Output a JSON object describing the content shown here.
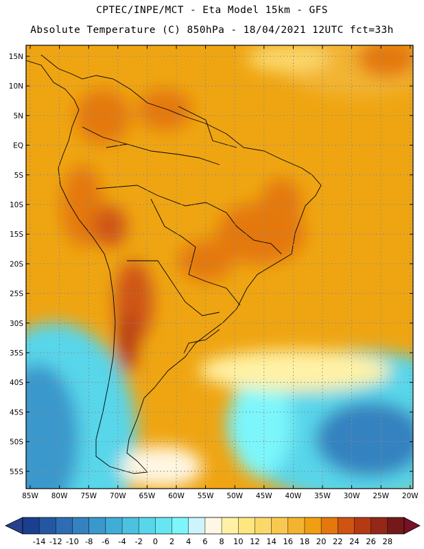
{
  "title_line1": "CPTEC/INPE/MCT -  Eta Model 15km - GFS",
  "title_line2": "Absolute Temperature (C) 850hPa - 18/04/2021 12UTC fct=33h",
  "lat_labels": [
    "15N",
    "10N",
    "5N",
    "EQ",
    "5S",
    "10S",
    "15S",
    "20S",
    "25S",
    "30S",
    "35S",
    "40S",
    "45S",
    "50S",
    "55S"
  ],
  "lon_labels": [
    "85W",
    "80W",
    "75W",
    "70W",
    "65W",
    "60W",
    "55W",
    "50W",
    "45W",
    "40W",
    "35W",
    "30W",
    "25W",
    "20W"
  ],
  "colorbar": {
    "levels": [
      "-14",
      "-12",
      "-10",
      "-8",
      "-6",
      "-4",
      "-2",
      "0",
      "2",
      "4",
      "6",
      "8",
      "10",
      "12",
      "14",
      "16",
      "18",
      "20",
      "22",
      "24",
      "26",
      "28"
    ],
    "colors": [
      "#1a3f8f",
      "#2457a3",
      "#2e6db3",
      "#3582c0",
      "#3b98cc",
      "#41add6",
      "#4cc2e0",
      "#58d6ea",
      "#66e6f2",
      "#7cf6fb",
      "#cdf3fb",
      "#fff7e3",
      "#fff2a6",
      "#ffe77f",
      "#fbd86a",
      "#f7c950",
      "#f2b430",
      "#ef9f11",
      "#e4780c",
      "#cf5412",
      "#b43a14",
      "#932817",
      "#731a19"
    ],
    "under_color": "#26408a",
    "over_color": "#7a0f28"
  }
}
